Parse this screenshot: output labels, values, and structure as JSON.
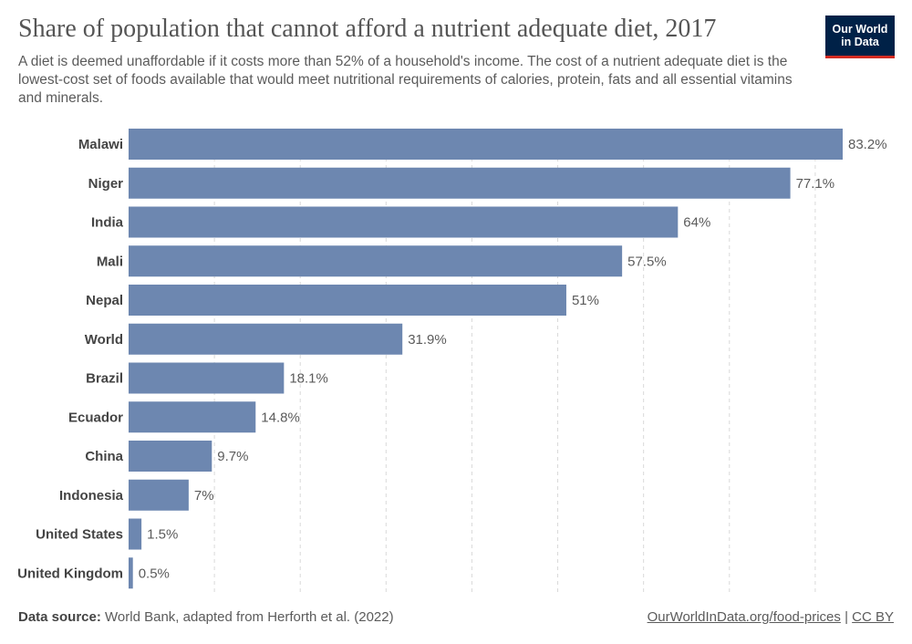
{
  "header": {
    "title": "Share of population that cannot afford a nutrient adequate diet, 2017",
    "subtitle": "A diet is deemed unaffordable if it costs more than 52% of a household's income. The cost of a nutrient adequate diet is the lowest-cost set of foods available that would meet nutritional requirements of calories, protein, fats and all essential vitamins and minerals.",
    "logo_line1": "Our World",
    "logo_line2": "in Data"
  },
  "footer": {
    "source_label": "Data source:",
    "source_text": "World Bank, adapted from Herforth et al. (2022)",
    "link_text": "OurWorldInData.org/food-prices",
    "separator": "|",
    "license": "CC BY"
  },
  "colors": {
    "bar": "#6d87b0",
    "gridline": "#d9d9d9",
    "label": "#444444",
    "value_label": "#5b5b5b",
    "logo_bg": "#002147",
    "logo_accent": "#d42b21"
  },
  "chart_data": {
    "type": "bar",
    "orientation": "horizontal",
    "title": "Share of population that cannot afford a nutrient adequate diet, 2017",
    "categories": [
      "Malawi",
      "Niger",
      "India",
      "Mali",
      "Nepal",
      "World",
      "Brazil",
      "Ecuador",
      "China",
      "Indonesia",
      "United States",
      "United Kingdom"
    ],
    "values": [
      83.2,
      77.1,
      64,
      57.5,
      51,
      31.9,
      18.1,
      14.8,
      9.7,
      7,
      1.5,
      0.5
    ],
    "value_labels": [
      "83.2%",
      "77.1%",
      "64%",
      "57.5%",
      "51%",
      "31.9%",
      "18.1%",
      "14.8%",
      "9.7%",
      "7%",
      "1.5%",
      "0.5%"
    ],
    "xlim": [
      0,
      83.2
    ],
    "grid_values": [
      10,
      20,
      30,
      40,
      50,
      60,
      70,
      80
    ],
    "grid": true
  }
}
